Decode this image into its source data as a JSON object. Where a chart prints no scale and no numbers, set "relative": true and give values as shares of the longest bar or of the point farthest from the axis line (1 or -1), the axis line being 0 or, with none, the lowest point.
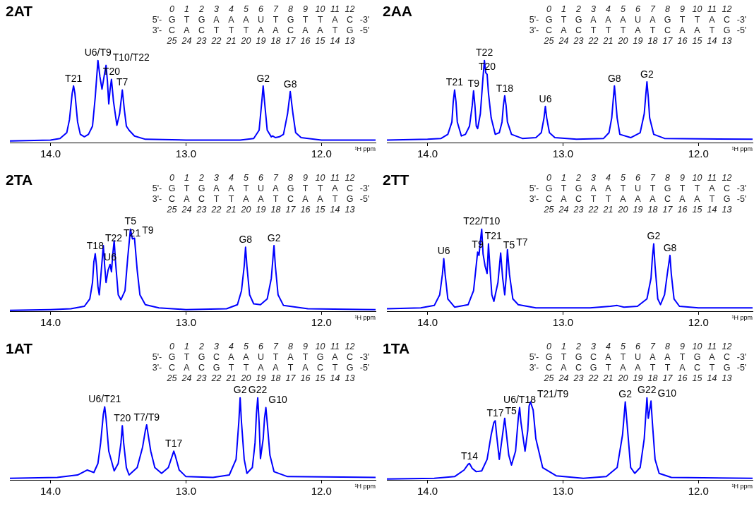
{
  "chart_data": [
    {
      "type": "line",
      "title": "2AT",
      "xlabel": "¹H ppm",
      "relative": true,
      "tick_labels": "x",
      "color": "#0000ff",
      "xlim": [
        14.3,
        11.6
      ],
      "xticks": [
        {
          "value": 14,
          "label": "14.0"
        },
        {
          "value": 13,
          "label": "13.0"
        },
        {
          "value": 12,
          "label": "12.0"
        }
      ],
      "x": [
        14.3,
        14.0,
        13.93,
        13.88,
        13.86,
        13.84,
        13.83,
        13.82,
        13.8,
        13.78,
        13.75,
        13.72,
        13.69,
        13.67,
        13.65,
        13.635,
        13.62,
        13.6,
        13.59,
        13.58,
        13.57,
        13.56,
        13.55,
        13.535,
        13.51,
        13.49,
        13.47,
        13.455,
        13.44,
        13.42,
        13.38,
        13.3,
        13.0,
        12.6,
        12.5,
        12.46,
        12.44,
        12.43,
        12.42,
        12.4,
        12.37,
        12.36,
        12.34,
        12.31,
        12.28,
        12.25,
        12.23,
        12.21,
        12.19,
        12.15,
        12.0,
        11.6
      ],
      "values": [
        0.02,
        0.03,
        0.05,
        0.12,
        0.28,
        0.6,
        0.69,
        0.6,
        0.25,
        0.1,
        0.07,
        0.1,
        0.2,
        0.55,
        1.0,
        0.8,
        0.65,
        0.85,
        0.94,
        0.75,
        0.47,
        0.65,
        0.77,
        0.5,
        0.21,
        0.35,
        0.64,
        0.4,
        0.2,
        0.15,
        0.08,
        0.04,
        0.03,
        0.03,
        0.05,
        0.15,
        0.5,
        0.69,
        0.5,
        0.15,
        0.07,
        0.08,
        0.06,
        0.07,
        0.1,
        0.35,
        0.62,
        0.35,
        0.12,
        0.06,
        0.03,
        0.03
      ],
      "annotations": [
        "0 1 2 3 4 5 6 7 8 9 10 11 12",
        "5'- G T G A A A U T G T T A C -3'",
        "3'- C A C T T T A A C A A T G -5'",
        "25 24 23 22 21 20 19 18 17 16 15 14 13",
        {
          "text": "T21",
          "x": 13.83,
          "y": 0.69
        },
        {
          "text": "U6/T9",
          "x": 13.65,
          "y": 1.0
        },
        {
          "text": "T10/T22",
          "x": 13.59,
          "y": 0.94
        },
        {
          "text": "T20",
          "x": 13.55,
          "y": 0.77
        },
        {
          "text": "T7",
          "x": 13.47,
          "y": 0.64
        },
        {
          "text": "G2",
          "x": 12.43,
          "y": 0.69
        },
        {
          "text": "G8",
          "x": 12.23,
          "y": 0.62
        }
      ]
    },
    {
      "type": "line",
      "title": "2AA",
      "xlabel": "¹H ppm",
      "relative": true,
      "tick_labels": "x",
      "color": "#0000ff",
      "xlim": [
        14.3,
        11.6
      ],
      "xticks": [
        {
          "value": 14,
          "label": "14.0"
        },
        {
          "value": 13,
          "label": "13.0"
        },
        {
          "value": 12,
          "label": "12.0"
        }
      ],
      "x": [
        14.3,
        14.0,
        13.9,
        13.85,
        13.82,
        13.81,
        13.8,
        13.79,
        13.78,
        13.75,
        13.72,
        13.69,
        13.67,
        13.66,
        13.65,
        13.64,
        13.63,
        13.61,
        13.59,
        13.58,
        13.57,
        13.56,
        13.55,
        13.53,
        13.5,
        13.47,
        13.45,
        13.44,
        13.43,
        13.42,
        13.41,
        13.38,
        13.3,
        13.2,
        13.16,
        13.14,
        13.13,
        13.12,
        13.1,
        13.06,
        12.9,
        12.7,
        12.66,
        12.64,
        12.63,
        12.62,
        12.61,
        12.6,
        12.58,
        12.5,
        12.43,
        12.4,
        12.39,
        12.38,
        12.37,
        12.36,
        12.33,
        12.25,
        11.6
      ],
      "values": [
        0.03,
        0.04,
        0.05,
        0.1,
        0.25,
        0.5,
        0.64,
        0.5,
        0.25,
        0.08,
        0.1,
        0.2,
        0.45,
        0.63,
        0.45,
        0.2,
        0.17,
        0.35,
        0.8,
        1.0,
        0.85,
        0.83,
        0.6,
        0.3,
        0.1,
        0.12,
        0.25,
        0.45,
        0.57,
        0.45,
        0.25,
        0.1,
        0.05,
        0.06,
        0.12,
        0.3,
        0.44,
        0.3,
        0.12,
        0.06,
        0.04,
        0.05,
        0.12,
        0.3,
        0.5,
        0.69,
        0.5,
        0.3,
        0.1,
        0.06,
        0.12,
        0.35,
        0.55,
        0.74,
        0.55,
        0.3,
        0.1,
        0.05,
        0.04
      ],
      "annotations": [
        "0 1 2 3 4 5 6 7 8 9 10 11 12",
        "5'- G T G A A A U A G T T A C -3'",
        "3'- C A C T T T A T C A A T G -5'",
        "25 24 23 22 21 20 19 18 17 16 15 14 13",
        {
          "text": "T21",
          "x": 13.8,
          "y": 0.64
        },
        {
          "text": "T9",
          "x": 13.66,
          "y": 0.63
        },
        {
          "text": "T22",
          "x": 13.58,
          "y": 1.0
        },
        {
          "text": "T20",
          "x": 13.56,
          "y": 0.83
        },
        {
          "text": "T18",
          "x": 13.43,
          "y": 0.57
        },
        {
          "text": "U6",
          "x": 13.13,
          "y": 0.44
        },
        {
          "text": "G8",
          "x": 12.62,
          "y": 0.69
        },
        {
          "text": "G2",
          "x": 12.38,
          "y": 0.74
        }
      ]
    },
    {
      "type": "line",
      "title": "2TA",
      "xlabel": "¹H ppm",
      "relative": true,
      "tick_labels": "x",
      "color": "#0000ff",
      "xlim": [
        14.3,
        11.6
      ],
      "xticks": [
        {
          "value": 14,
          "label": "14.0"
        },
        {
          "value": 13,
          "label": "13.0"
        },
        {
          "value": 12,
          "label": "12.0"
        }
      ],
      "x": [
        14.3,
        14.0,
        13.85,
        13.75,
        13.71,
        13.69,
        13.68,
        13.67,
        13.66,
        13.65,
        13.64,
        13.625,
        13.61,
        13.6,
        13.59,
        13.575,
        13.56,
        13.55,
        13.54,
        13.53,
        13.52,
        13.5,
        13.48,
        13.45,
        13.43,
        13.41,
        13.395,
        13.38,
        13.36,
        13.34,
        13.3,
        13.2,
        13.0,
        12.7,
        12.62,
        12.59,
        12.57,
        12.56,
        12.55,
        12.53,
        12.5,
        12.45,
        12.4,
        12.37,
        12.36,
        12.35,
        12.34,
        12.32,
        12.28,
        12.1,
        11.6
      ],
      "values": [
        0.01,
        0.02,
        0.03,
        0.06,
        0.15,
        0.35,
        0.6,
        0.7,
        0.55,
        0.3,
        0.2,
        0.5,
        0.8,
        0.55,
        0.35,
        0.5,
        0.57,
        0.48,
        0.7,
        0.86,
        0.6,
        0.2,
        0.14,
        0.25,
        0.65,
        1.0,
        0.88,
        0.89,
        0.5,
        0.2,
        0.08,
        0.04,
        0.02,
        0.03,
        0.08,
        0.25,
        0.55,
        0.78,
        0.55,
        0.2,
        0.09,
        0.08,
        0.15,
        0.4,
        0.6,
        0.8,
        0.55,
        0.2,
        0.07,
        0.03,
        0.02
      ],
      "annotations": [
        "0 1 2 3 4 5 6 7 8 9 10 11 12",
        "5'- G T G A A T U A G T T A C -3'",
        "3'- C A C T T A A T C A A T G -5'",
        "25 24 23 22 21 20 19 18 17 16 15 14 13",
        {
          "text": "T18",
          "x": 13.67,
          "y": 0.7
        },
        {
          "text": "T22",
          "x": 13.61,
          "y": 0.8
        },
        {
          "text": "U6",
          "x": 13.56,
          "y": 0.57
        },
        {
          "text": "T21",
          "x": 13.53,
          "y": 0.86
        },
        {
          "text": "T5",
          "x": 13.41,
          "y": 1.0
        },
        {
          "text": "T9",
          "x": 13.38,
          "y": 0.89
        },
        {
          "text": "G8",
          "x": 12.56,
          "y": 0.78
        },
        {
          "text": "G2",
          "x": 12.35,
          "y": 0.8
        }
      ]
    },
    {
      "type": "line",
      "title": "2TT",
      "xlabel": "¹H ppm",
      "relative": true,
      "tick_labels": "x",
      "color": "#0000ff",
      "xlim": [
        14.3,
        11.6
      ],
      "xticks": [
        {
          "value": 14,
          "label": "14.0"
        },
        {
          "value": 13,
          "label": "13.0"
        },
        {
          "value": 12,
          "label": "12.0"
        }
      ],
      "x": [
        14.3,
        14.05,
        13.95,
        13.91,
        13.89,
        13.88,
        13.87,
        13.85,
        13.8,
        13.7,
        13.66,
        13.63,
        13.62,
        13.61,
        13.6,
        13.59,
        13.575,
        13.56,
        13.55,
        13.54,
        13.525,
        13.51,
        13.48,
        13.46,
        13.445,
        13.43,
        13.42,
        13.41,
        13.395,
        13.37,
        13.33,
        13.2,
        12.8,
        12.65,
        12.6,
        12.55,
        12.45,
        12.38,
        12.35,
        12.34,
        12.33,
        12.32,
        12.3,
        12.28,
        12.25,
        12.23,
        12.21,
        12.2,
        12.18,
        12.14,
        12.0,
        11.6
      ],
      "values": [
        0.03,
        0.04,
        0.07,
        0.2,
        0.45,
        0.64,
        0.45,
        0.15,
        0.05,
        0.08,
        0.25,
        0.72,
        0.68,
        0.85,
        1.0,
        0.7,
        0.55,
        0.46,
        0.82,
        0.55,
        0.2,
        0.12,
        0.35,
        0.71,
        0.4,
        0.2,
        0.4,
        0.75,
        0.45,
        0.15,
        0.08,
        0.04,
        0.04,
        0.06,
        0.07,
        0.05,
        0.06,
        0.15,
        0.4,
        0.65,
        0.82,
        0.55,
        0.15,
        0.08,
        0.2,
        0.45,
        0.68,
        0.45,
        0.15,
        0.06,
        0.04,
        0.04
      ],
      "annotations": [
        "0 1 2 3 4 5 6 7 8 9 10 11 12",
        "5'- G T G A A T U T G T T A C -3'",
        "3'- C A C T T A A A C A A T G -5'",
        "25 24 23 22 21 20 19 18 17 16 15 14 13",
        {
          "text": "U6",
          "x": 13.88,
          "y": 0.64
        },
        {
          "text": "T9",
          "x": 13.63,
          "y": 0.72
        },
        {
          "text": "T22/T10",
          "x": 13.6,
          "y": 1.0
        },
        {
          "text": "T21",
          "x": 13.55,
          "y": 0.82
        },
        {
          "text": "T5",
          "x": 13.46,
          "y": 0.71
        },
        {
          "text": "T7",
          "x": 13.41,
          "y": 0.75
        },
        {
          "text": "G2",
          "x": 12.33,
          "y": 0.82
        },
        {
          "text": "G8",
          "x": 12.21,
          "y": 0.68
        }
      ]
    },
    {
      "type": "line",
      "title": "1AT",
      "xlabel": "¹H ppm",
      "relative": true,
      "tick_labels": "x",
      "color": "#0000ff",
      "xlim": [
        14.3,
        11.6
      ],
      "xticks": [
        {
          "value": 14,
          "label": "14.0"
        },
        {
          "value": 13,
          "label": "13.0"
        },
        {
          "value": 12,
          "label": "12.0"
        }
      ],
      "x": [
        14.3,
        13.95,
        13.8,
        13.73,
        13.68,
        13.65,
        13.63,
        13.61,
        13.6,
        13.59,
        13.57,
        13.53,
        13.5,
        13.48,
        13.47,
        13.46,
        13.44,
        13.42,
        13.36,
        13.32,
        13.3,
        13.29,
        13.28,
        13.26,
        13.23,
        13.18,
        13.13,
        13.1,
        13.09,
        13.08,
        13.05,
        13.0,
        12.8,
        12.68,
        12.63,
        12.61,
        12.6,
        12.59,
        12.57,
        12.55,
        12.51,
        12.49,
        12.48,
        12.47,
        12.46,
        12.45,
        12.43,
        12.42,
        12.41,
        12.4,
        12.38,
        12.35,
        12.25,
        11.6
      ],
      "values": [
        0.02,
        0.03,
        0.06,
        0.12,
        0.09,
        0.2,
        0.45,
        0.8,
        0.89,
        0.75,
        0.35,
        0.11,
        0.2,
        0.45,
        0.66,
        0.45,
        0.15,
        0.06,
        0.15,
        0.4,
        0.6,
        0.67,
        0.56,
        0.35,
        0.15,
        0.08,
        0.15,
        0.3,
        0.35,
        0.3,
        0.12,
        0.04,
        0.03,
        0.06,
        0.25,
        0.7,
        1.0,
        0.7,
        0.25,
        0.08,
        0.15,
        0.45,
        0.8,
        1.0,
        0.7,
        0.26,
        0.5,
        0.75,
        0.88,
        0.7,
        0.3,
        0.1,
        0.04,
        0.03
      ],
      "annotations": [
        "0 1 2 3 4 5 6 7 8 9 10 11 12",
        "5'- G T G C A A U T A T G A C -3'",
        "3'- C A C G T T A A T A C T G -5'",
        "25 24 23 22 21 20 19 18 17 16 15 14 13",
        {
          "text": "U6/T21",
          "x": 13.6,
          "y": 0.89
        },
        {
          "text": "T20",
          "x": 13.47,
          "y": 0.66
        },
        {
          "text": "T7/T9",
          "x": 13.29,
          "y": 0.67
        },
        {
          "text": "T17",
          "x": 13.09,
          "y": 0.35
        },
        {
          "text": "G2",
          "x": 12.6,
          "y": 1.0
        },
        {
          "text": "G22",
          "x": 12.47,
          "y": 1.0
        },
        {
          "text": "G10",
          "x": 12.41,
          "y": 0.88
        }
      ]
    },
    {
      "type": "line",
      "title": "1TA",
      "xlabel": "¹H ppm",
      "relative": true,
      "tick_labels": "x",
      "color": "#0000ff",
      "xlim": [
        14.3,
        11.6
      ],
      "xticks": [
        {
          "value": 14,
          "label": "14.0"
        },
        {
          "value": 13,
          "label": "13.0"
        },
        {
          "value": 12,
          "label": "12.0"
        }
      ],
      "x": [
        14.3,
        13.95,
        13.8,
        13.73,
        13.7,
        13.69,
        13.67,
        13.64,
        13.6,
        13.56,
        13.53,
        13.51,
        13.5,
        13.49,
        13.47,
        13.45,
        13.43,
        13.42,
        13.4,
        13.38,
        13.35,
        13.33,
        13.32,
        13.31,
        13.28,
        13.26,
        13.25,
        13.24,
        13.22,
        13.2,
        13.15,
        13.05,
        12.85,
        12.68,
        12.6,
        12.56,
        12.54,
        12.52,
        12.5,
        12.47,
        12.43,
        12.4,
        12.38,
        12.37,
        12.36,
        12.35,
        12.34,
        12.32,
        12.29,
        12.2,
        11.6
      ],
      "values": [
        0.01,
        0.02,
        0.04,
        0.12,
        0.19,
        0.2,
        0.14,
        0.1,
        0.11,
        0.25,
        0.55,
        0.7,
        0.72,
        0.55,
        0.25,
        0.5,
        0.75,
        0.6,
        0.3,
        0.18,
        0.35,
        0.75,
        0.88,
        0.7,
        0.35,
        0.6,
        0.9,
        0.95,
        0.85,
        0.5,
        0.15,
        0.05,
        0.02,
        0.04,
        0.15,
        0.55,
        0.95,
        0.55,
        0.15,
        0.08,
        0.15,
        0.5,
        1.0,
        0.75,
        0.85,
        0.96,
        0.7,
        0.25,
        0.08,
        0.03,
        0.02
      ],
      "annotations": [
        "0 1 2 3 4 5 6 7 8 9 10 11 12",
        "5'- G T G C A T U A A T G A C -3'",
        "3'- C A C G T A A T T A C T G -5'",
        "25 24 23 22 21 20 19 18 17 16 15 14 13",
        {
          "text": "T14",
          "x": 13.69,
          "y": 0.2
        },
        {
          "text": "T17",
          "x": 13.5,
          "y": 0.72
        },
        {
          "text": "T5",
          "x": 13.43,
          "y": 0.75
        },
        {
          "text": "U6/T18",
          "x": 13.32,
          "y": 0.88
        },
        {
          "text": "T21/T9",
          "x": 13.24,
          "y": 0.95
        },
        {
          "text": "G2",
          "x": 12.54,
          "y": 0.95
        },
        {
          "text": "G22",
          "x": 12.38,
          "y": 1.0
        },
        {
          "text": "G10",
          "x": 12.35,
          "y": 0.96
        }
      ]
    }
  ]
}
